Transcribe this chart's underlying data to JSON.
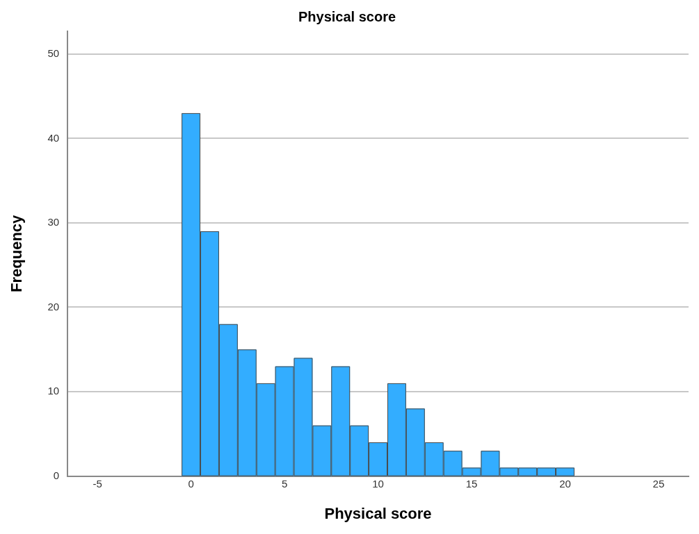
{
  "chart_data": {
    "type": "histogram",
    "title": "Physical score",
    "xlabel": "Physical score",
    "ylabel": "Frequency",
    "bins": [
      -0.5,
      0.5,
      1.5,
      2.5,
      3.5,
      4.5,
      5.5,
      6.5,
      7.5,
      8.5,
      9.5,
      10.5,
      11.5,
      12.5,
      13.5,
      14.5,
      15.5,
      16.5,
      17.5,
      18.5,
      19.5,
      20.5
    ],
    "values": [
      43,
      29,
      18,
      15,
      11,
      13,
      14,
      6,
      13,
      6,
      4,
      11,
      8,
      4,
      3,
      1,
      3,
      1,
      1,
      1,
      1
    ],
    "color": "#33adff",
    "xlim": [
      -6.6,
      26.6
    ],
    "xticks": [
      -5,
      0,
      5,
      10,
      15,
      20,
      25
    ],
    "ylim": [
      0,
      52.7
    ],
    "yticks": [
      0,
      10,
      20,
      30,
      40,
      50
    ],
    "grid": "y",
    "legend": false
  }
}
